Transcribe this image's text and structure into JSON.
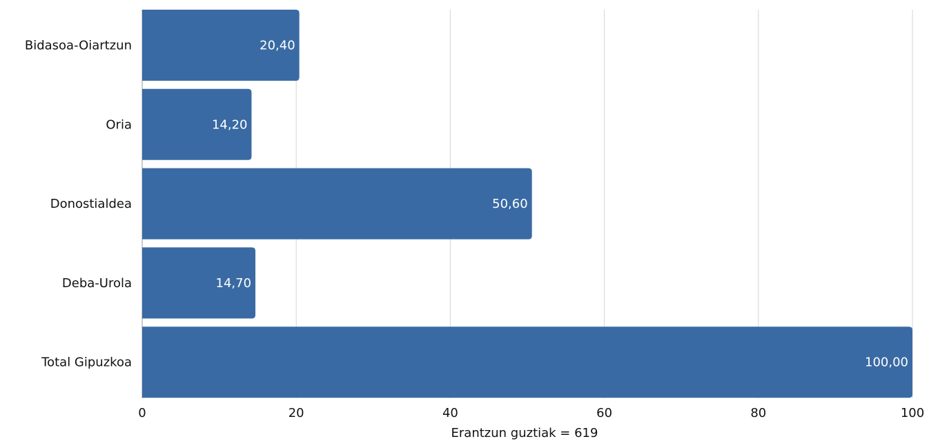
{
  "chart_data": {
    "type": "bar",
    "orientation": "horizontal",
    "categories": [
      "Bidasoa-Oiartzun",
      "Oria",
      "Donostialdea",
      "Deba-Urola",
      "Total Gipuzkoa"
    ],
    "values": [
      20.4,
      14.2,
      50.6,
      14.7,
      100.0
    ],
    "value_labels": [
      "20,40",
      "14,20",
      "50,60",
      "14,70",
      "100,00"
    ],
    "xlabel": "Erantzun guztiak = 619",
    "ylabel": "",
    "xlim": [
      0,
      100
    ],
    "x_ticks": [
      0,
      20,
      40,
      60,
      80,
      100
    ],
    "x_tick_labels": [
      "0",
      "20",
      "40",
      "60",
      "80",
      "100"
    ],
    "grid": "vertical",
    "bar_color": "#3a6aa3"
  }
}
